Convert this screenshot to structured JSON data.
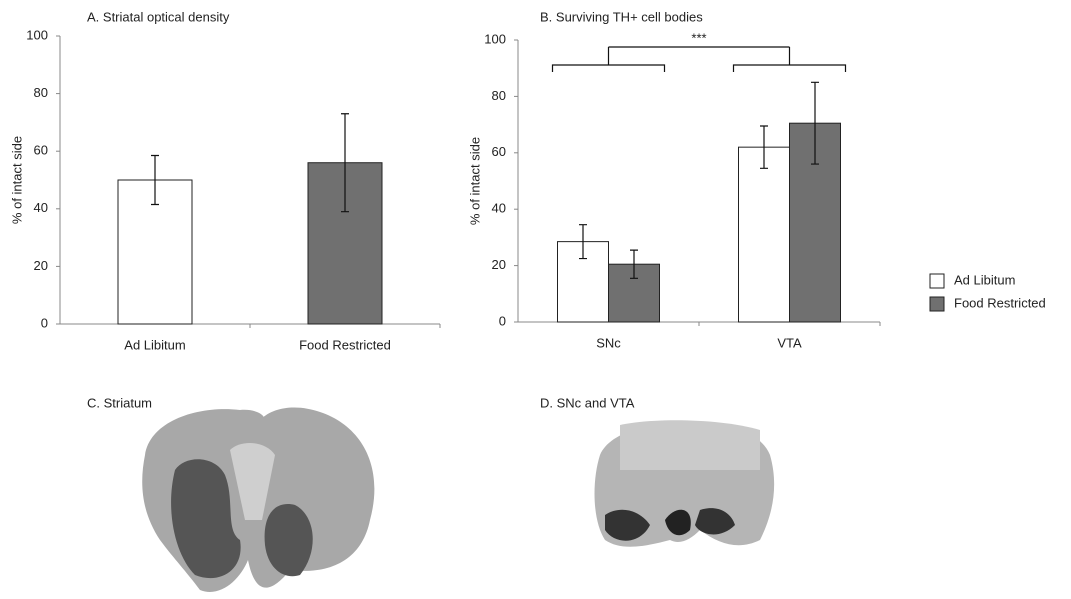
{
  "chart_data": [
    {
      "type": "bar",
      "title": "A. Striatal optical density",
      "y_label": "% of intact side",
      "categories": [
        "Ad Libitum",
        "Food Restricted"
      ],
      "values": [
        50,
        56
      ],
      "errors": [
        8.5,
        17
      ],
      "colors": [
        "#ffffff",
        "#707070"
      ],
      "ylim": [
        0,
        100
      ],
      "yticks": [
        0,
        20,
        40,
        60,
        80,
        100
      ]
    },
    {
      "type": "grouped_bar",
      "title": "B. Surviving TH+ cell bodies",
      "y_label": "% of intact side",
      "categories": [
        "SNc",
        "VTA"
      ],
      "series": [
        {
          "name": "Ad Libitum",
          "color": "#ffffff",
          "values": [
            28.5,
            62
          ],
          "errors": [
            6,
            7.5
          ]
        },
        {
          "name": "Food Restricted",
          "color": "#707070",
          "values": [
            20.5,
            70.5
          ],
          "errors": [
            5,
            14.5
          ]
        }
      ],
      "annotation": "***",
      "ylim": [
        0,
        100
      ],
      "yticks": [
        0,
        20,
        40,
        60,
        80,
        100
      ],
      "legend": "right"
    }
  ],
  "images": [
    {
      "title": "C. Striatum"
    },
    {
      "title": "D. SNc and VTA"
    }
  ]
}
